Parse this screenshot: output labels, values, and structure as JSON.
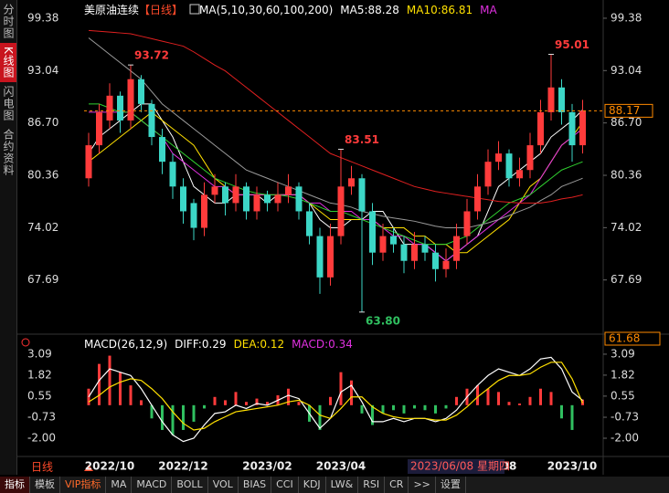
{
  "header": {
    "title": "美原油连续",
    "period": "【日线】",
    "indicator": "MA(5,10,30,60,100,200)"
  },
  "sidebar": [
    "分时图",
    "K线图",
    "闪电图",
    "合约资料"
  ],
  "toolbar": [
    "指标",
    "模板",
    "VIP指标",
    "MA",
    "MACD",
    "BOLL",
    "VOL",
    "BIAS",
    "CCI",
    "KDJ",
    "LW&",
    "RSI",
    "CR",
    ">>",
    "设置"
  ],
  "period_switch": "日线",
  "crosshair_date": "2023/06/08 星期四",
  "chart_data": [
    {
      "type": "candlestick",
      "categories": [
        null,
        null,
        "2022/10",
        null,
        null,
        null,
        null,
        null,
        null,
        "2022/12",
        null,
        null,
        null,
        null,
        null,
        null,
        null,
        "2023/02",
        null,
        null,
        null,
        null,
        null,
        null,
        "2023/04",
        null,
        null,
        null,
        null,
        null,
        null,
        null,
        null,
        null,
        null,
        null,
        null,
        null,
        null,
        null,
        "08",
        null,
        null,
        null,
        null,
        null,
        "2023/10",
        null
      ],
      "open": [
        80,
        84,
        87,
        90,
        87,
        92,
        89,
        85,
        82,
        79,
        77,
        74,
        78,
        79,
        77,
        79,
        76,
        78,
        77,
        78,
        79,
        76,
        73,
        68,
        73,
        79,
        80,
        76,
        71,
        73,
        72,
        70,
        72,
        71,
        69,
        70,
        73,
        76,
        79,
        82,
        83,
        80,
        81,
        84,
        88,
        91,
        88,
        84
      ],
      "high": [
        85.5,
        89,
        91.5,
        90.5,
        93.72,
        92.5,
        89.5,
        86,
        83,
        80,
        77.5,
        79.5,
        80.5,
        79.5,
        80.5,
        79.5,
        79,
        78.5,
        79.5,
        80.5,
        79.5,
        77,
        74,
        74.5,
        83.51,
        81.5,
        80.5,
        77,
        74.5,
        74,
        73,
        73.5,
        73,
        72,
        71.5,
        74.5,
        77.5,
        80.5,
        83.5,
        84.5,
        83.5,
        82.5,
        85.5,
        89.5,
        95.01,
        92,
        89,
        89.5
      ],
      "low": [
        79,
        83,
        86,
        85.5,
        86,
        88,
        84,
        80.5,
        77.5,
        74.5,
        72.5,
        73,
        77,
        75.5,
        76,
        75,
        75,
        76,
        76,
        77,
        75,
        72,
        66,
        67,
        72,
        78,
        63.8,
        69.5,
        70,
        71,
        68.5,
        69,
        70,
        67.5,
        68,
        69,
        72,
        75,
        78,
        81,
        79,
        79,
        80,
        83,
        87,
        86.5,
        82,
        83
      ],
      "close": [
        84,
        88,
        90,
        87,
        92,
        89,
        85,
        82,
        79,
        76,
        74,
        78,
        79,
        77,
        79,
        76,
        78,
        77,
        78,
        79,
        76,
        73,
        68,
        73,
        79,
        80,
        76,
        71,
        73,
        72,
        70,
        72,
        71,
        69,
        70,
        73,
        76,
        79,
        82,
        83,
        80,
        81,
        84,
        88,
        91,
        88,
        84,
        88.17
      ],
      "up_color": "#ff3b3b",
      "down_color": "#3cd6c6",
      "ylim": [
        61.68,
        100.26
      ],
      "yticks": [
        67.69,
        74.02,
        80.36,
        {
          "value": 86.7,
          "label": "86.70"
        },
        93.04,
        99.38
      ],
      "last_price": 88.17,
      "annotations": [
        93.72,
        83.51,
        {
          "value": 63.8,
          "label": "63.80"
        },
        95.01
      ],
      "series": [
        {
          "name": "MA5:88.28",
          "color": "#ffffff",
          "values": [
            83,
            85,
            86,
            87,
            88,
            89,
            89,
            87,
            85,
            82,
            79,
            78,
            77,
            77,
            78,
            78,
            78,
            77,
            78,
            78,
            78,
            77,
            75,
            74,
            74,
            75,
            75,
            76,
            76,
            74,
            72,
            72,
            72,
            71,
            70,
            71,
            72,
            73,
            76,
            79,
            80,
            81,
            82,
            83,
            85,
            86,
            87,
            88.28
          ]
        },
        {
          "name": "MA10:86.81",
          "color": "#ffe000",
          "values": [
            82,
            83,
            84,
            85,
            86,
            87,
            88,
            87,
            86,
            85,
            84,
            82,
            80,
            79,
            78,
            78,
            78,
            78,
            78,
            78,
            78,
            77,
            76,
            75,
            75,
            75,
            75,
            75,
            74,
            74,
            74,
            73,
            73,
            72,
            72,
            71,
            71,
            72,
            73,
            74,
            75,
            77,
            79,
            80,
            82,
            84,
            85,
            86.81
          ]
        },
        {
          "name": "MA",
          "color": "#e030e0",
          "values": [
            88,
            88,
            88,
            88,
            88,
            87,
            86,
            85,
            83,
            82,
            81,
            80,
            79,
            79,
            78,
            78,
            78,
            78,
            78,
            78,
            78,
            77,
            77,
            76,
            76,
            76,
            75,
            75,
            74,
            73,
            73,
            72,
            72,
            71,
            70,
            71,
            72,
            73,
            74,
            75,
            76,
            77,
            78,
            80,
            82,
            84,
            85,
            86
          ]
        },
        {
          "color": "#30d030",
          "values": [
            89,
            89,
            88.5,
            88,
            88,
            87,
            86,
            85,
            84,
            83,
            82,
            81,
            80,
            79.5,
            79,
            78.5,
            78.2,
            78,
            78,
            77.8,
            77.5,
            77,
            76.5,
            76,
            76,
            75.5,
            75,
            74.5,
            74,
            73.5,
            73,
            72.5,
            72,
            72,
            72,
            72.5,
            73,
            74,
            75,
            76,
            77,
            77.5,
            78,
            79,
            80,
            81,
            81.5,
            82
          ]
        },
        {
          "color": "#9a9a9a",
          "values": [
            97,
            96,
            95,
            94,
            93,
            92,
            90.5,
            89,
            88,
            87,
            86,
            85,
            84,
            83,
            82,
            81,
            80.5,
            80,
            79.5,
            79,
            78.5,
            78,
            77.5,
            77,
            76.8,
            76.5,
            76,
            75.7,
            75.4,
            75.2,
            75,
            74.8,
            74.5,
            74.2,
            74,
            74,
            74,
            74.3,
            74.6,
            75,
            75.5,
            76,
            76.5,
            77.3,
            78,
            79,
            79.5,
            80
          ]
        },
        {
          "color": "#e02020",
          "values": [
            97.9,
            97.8,
            97.7,
            97.6,
            97.5,
            97.2,
            96.9,
            96.6,
            96.3,
            96,
            95.3,
            94.5,
            93.7,
            93,
            92,
            91,
            90,
            89,
            88,
            87,
            86,
            85,
            84,
            83,
            82.5,
            82,
            81.5,
            81,
            80.5,
            80,
            79.5,
            79,
            78.7,
            78.4,
            78.2,
            78,
            77.8,
            77.6,
            77.4,
            77.2,
            77.1,
            77,
            77,
            77,
            77.2,
            77.5,
            77.7,
            78
          ]
        }
      ]
    },
    {
      "type": "macd",
      "title": "MACD(26,12,9)",
      "ylim": [
        -2.83,
        3.64
      ],
      "yticks": [
        {
          "value": -2,
          "label": "-2.00"
        },
        -0.73,
        0.55,
        1.82,
        3.09
      ],
      "series": [
        {
          "name": "DIFF:0.29",
          "color": "#ffffff",
          "values": [
            0.5,
            1.5,
            2.2,
            2,
            1.8,
            1,
            0,
            -1,
            -1.8,
            -2.2,
            -2,
            -1.2,
            -0.5,
            -0.4,
            0,
            -0.2,
            0.1,
            0,
            0.3,
            0.6,
            0.4,
            -0.5,
            -1.4,
            -0.8,
            0.8,
            1.2,
            0.2,
            -1,
            -1,
            -0.8,
            -1,
            -0.8,
            -0.8,
            -1,
            -0.8,
            -0.3,
            0.5,
            1.2,
            1.8,
            2.2,
            2,
            1.8,
            2.2,
            2.8,
            2.9,
            2.2,
            0.8,
            0.29
          ]
        },
        {
          "name": "DEA:0.12",
          "color": "#ffe000",
          "values": [
            0.2,
            0.6,
            1.1,
            1.4,
            1.6,
            1.5,
            1,
            0.4,
            -0.4,
            -1.1,
            -1.5,
            -1.4,
            -1,
            -0.7,
            -0.4,
            -0.3,
            -0.2,
            -0.1,
            0,
            0.2,
            0.3,
            0,
            -0.6,
            -0.8,
            -0.2,
            0.5,
            0.5,
            -0.1,
            -0.5,
            -0.7,
            -0.8,
            -0.8,
            -0.8,
            -0.9,
            -0.9,
            -0.6,
            -0.1,
            0.5,
            1,
            1.5,
            1.8,
            1.8,
            1.9,
            2.3,
            2.6,
            2.6,
            1.6,
            0.12
          ]
        },
        {
          "name": "MACD:0.34",
          "color": "#e030e0",
          "up_color": "#ff3b3b",
          "down_color": "#30c060",
          "values": [
            1,
            2.5,
            3,
            2,
            1.2,
            0.3,
            -0.8,
            -1.5,
            -1.8,
            -1.5,
            -1,
            -0.2,
            0.5,
            0.3,
            0.8,
            0.2,
            0.4,
            0.2,
            0.6,
            1,
            0.2,
            -1,
            -1.5,
            0.5,
            2,
            1.5,
            -0.5,
            -1.2,
            -0.5,
            -0.3,
            -0.5,
            -0.2,
            -0.3,
            -0.5,
            -0.2,
            0.5,
            1,
            1.2,
            1,
            0.8,
            0.2,
            0.1,
            0.5,
            1,
            0.8,
            -0.8,
            -1.5,
            0.34
          ]
        }
      ]
    }
  ]
}
